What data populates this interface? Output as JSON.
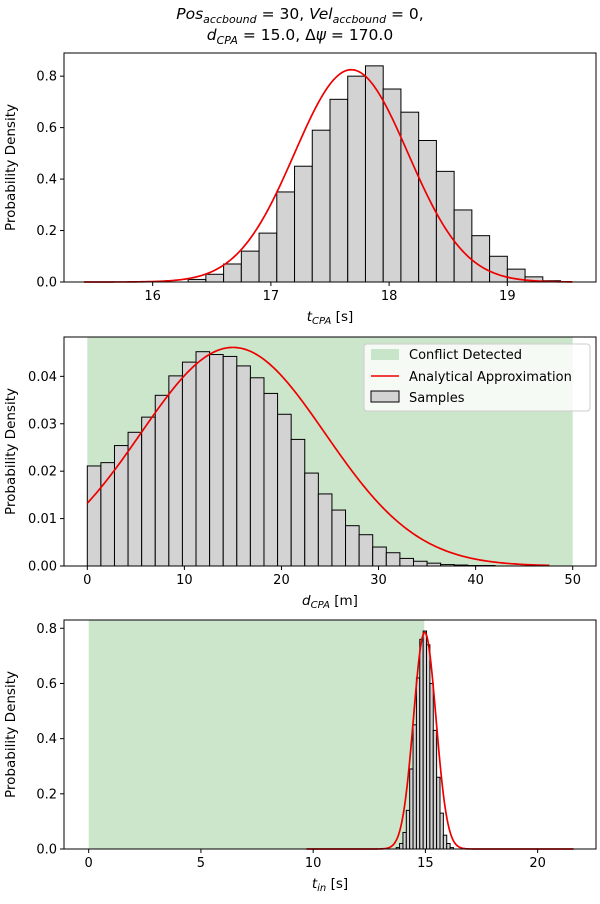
{
  "figure_title": {
    "line1": "Pos_accbound = 30, Vel_accbound = 0,",
    "line2": "d_CPA = 15.0, Δψ = 170.0"
  },
  "colors": {
    "bar_fill": "#d3d3d3",
    "bar_edge": "#000000",
    "curve": "#ee0000",
    "conflict_region": "#b9ddb9"
  },
  "legend": {
    "entries": [
      "Conflict Detected",
      "Analytical Approximation",
      "Samples"
    ]
  },
  "chart_data": [
    {
      "type": "bar",
      "name": "tcpa",
      "xlabel": "t_CPA [s]",
      "xlabel_main": "t",
      "xlabel_sub": "CPA",
      "xlabel_unit": " [s]",
      "ylabel": "Probability Density",
      "xlim": [
        15.25,
        19.75
      ],
      "ylim": [
        0,
        0.89
      ],
      "xticks": [
        16,
        17,
        18,
        19
      ],
      "yticks": [
        0.0,
        0.2,
        0.4,
        0.6,
        0.8
      ],
      "ytick_labels": [
        "0.0",
        "0.2",
        "0.4",
        "0.6",
        "0.8"
      ],
      "bins": {
        "start": 16.3,
        "width": 0.15,
        "values": [
          0.01,
          0.03,
          0.07,
          0.12,
          0.19,
          0.35,
          0.45,
          0.59,
          0.71,
          0.8,
          0.84,
          0.75,
          0.66,
          0.55,
          0.43,
          0.28,
          0.18,
          0.1,
          0.05,
          0.02,
          0.005
        ]
      },
      "curve": {
        "kind": "normal",
        "mean": 17.68,
        "sd": 0.48,
        "scale": 0.825,
        "range": [
          15.42,
          19.55
        ]
      },
      "shade": null
    },
    {
      "type": "bar",
      "name": "dcpa",
      "xlabel": "d_CPA [m]",
      "xlabel_main": "d",
      "xlabel_sub": "CPA",
      "xlabel_unit": " [m]",
      "ylabel": "Probability Density",
      "xlim": [
        -2.4,
        52.4
      ],
      "ylim": [
        0,
        0.0483
      ],
      "xticks": [
        0,
        10,
        20,
        30,
        40,
        50
      ],
      "yticks": [
        0.0,
        0.01,
        0.02,
        0.03,
        0.04
      ],
      "ytick_labels": [
        "0.00",
        "0.01",
        "0.02",
        "0.03",
        "0.04"
      ],
      "bins": {
        "start": 0,
        "width": 1.4,
        "values": [
          0.0211,
          0.0218,
          0.0254,
          0.0282,
          0.0314,
          0.036,
          0.0401,
          0.043,
          0.0452,
          0.0446,
          0.0442,
          0.0422,
          0.0397,
          0.0364,
          0.032,
          0.0267,
          0.0196,
          0.0152,
          0.0118,
          0.0085,
          0.0066,
          0.004,
          0.0028,
          0.0016,
          0.001,
          0.0006,
          0.0003,
          0.0002,
          0.0001,
          0.0001
        ]
      },
      "curve": {
        "kind": "normal",
        "mean": 15.0,
        "sd": 9.5,
        "scale": 0.0461,
        "range": [
          0,
          47.6
        ]
      },
      "shade": [
        0,
        50
      ]
    },
    {
      "type": "bar",
      "name": "tin",
      "xlabel": "t_in [s]",
      "xlabel_main": "t",
      "xlabel_sub": "in",
      "xlabel_unit": " [s]",
      "ylabel": "Probability Density",
      "xlim": [
        -1.1,
        22.6
      ],
      "ylim": [
        0,
        0.83
      ],
      "xticks": [
        0,
        5,
        10,
        15,
        20
      ],
      "yticks": [
        0.0,
        0.2,
        0.4,
        0.6,
        0.8
      ],
      "ytick_labels": [
        "0.0",
        "0.2",
        "0.4",
        "0.6",
        "0.8"
      ],
      "bins": {
        "start": 13.7,
        "width": 0.15,
        "values": [
          0.005,
          0.02,
          0.06,
          0.14,
          0.29,
          0.45,
          0.62,
          0.76,
          0.79,
          0.74,
          0.6,
          0.43,
          0.26,
          0.13,
          0.05,
          0.02,
          0.005
        ]
      },
      "curve": {
        "kind": "normal",
        "mean": 14.97,
        "sd": 0.5,
        "scale": 0.785,
        "range": [
          9.7,
          21.6
        ]
      },
      "shade": [
        0,
        14.95
      ]
    }
  ]
}
